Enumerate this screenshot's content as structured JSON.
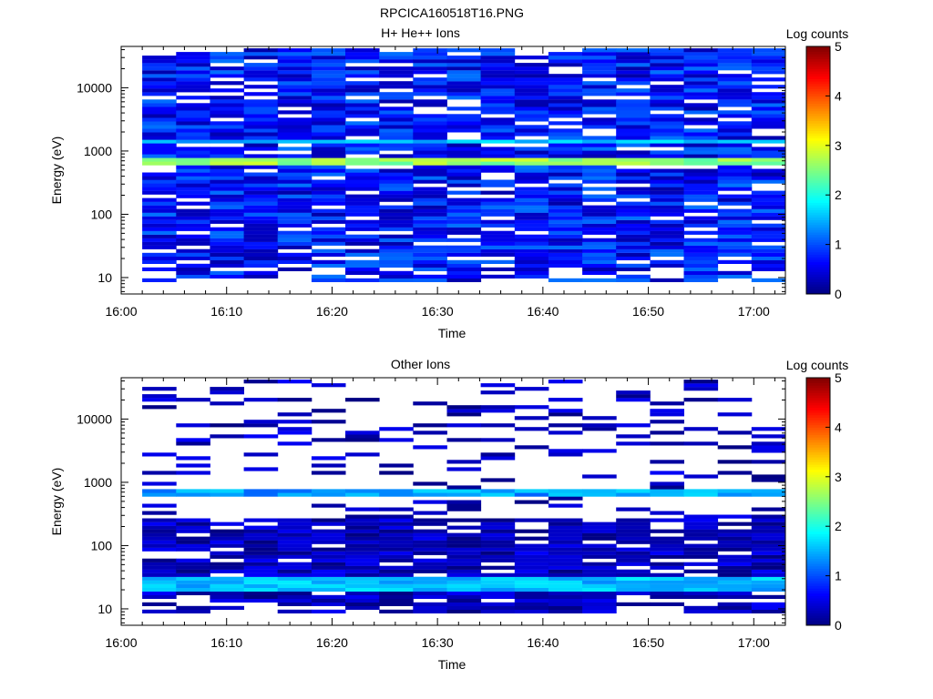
{
  "figure_title": "RPCICA160518T16.PNG",
  "chart_data": [
    {
      "type": "heatmap",
      "title": "H+ He++ Ions",
      "xlabel": "Time",
      "ylabel": "Energy (eV)",
      "x_ticks": [
        "16:00",
        "16:10",
        "16:20",
        "16:30",
        "16:40",
        "16:50",
        "17:00"
      ],
      "y_ticks": [
        "10",
        "100",
        "1000",
        "10000"
      ],
      "y_scale": "log",
      "ylim": [
        5.5,
        45000
      ],
      "colorbar": {
        "label": "Log counts",
        "ticks": [
          "0",
          "1",
          "2",
          "3",
          "4",
          "5"
        ],
        "range": [
          0,
          5
        ]
      },
      "time_columns_start": "16:02",
      "time_columns_end": "17:03",
      "band": {
        "energy_low": 570,
        "energy_high": 780,
        "log_counts_peak": 2.9
      },
      "secondary_band": {
        "energy_low": 1250,
        "energy_high": 1500,
        "log_counts_peak": 1.8
      },
      "background_log_counts": [
        0.2,
        1.2
      ]
    },
    {
      "type": "heatmap",
      "title": "Other Ions",
      "xlabel": "Time",
      "ylabel": "Energy (eV)",
      "x_ticks": [
        "16:00",
        "16:10",
        "16:20",
        "16:30",
        "16:40",
        "16:50",
        "17:00"
      ],
      "y_ticks": [
        "10",
        "100",
        "1000",
        "10000"
      ],
      "y_scale": "log",
      "ylim": [
        5.5,
        45000
      ],
      "colorbar": {
        "label": "Log counts",
        "ticks": [
          "0",
          "1",
          "2",
          "3",
          "4",
          "5"
        ],
        "range": [
          0,
          5
        ]
      },
      "time_columns_start": "16:02",
      "time_columns_end": "17:03",
      "band": {
        "energy_low": 600,
        "energy_high": 760,
        "log_counts_peak": 1.7
      },
      "secondary_band": {
        "energy_low": 18,
        "energy_high": 32,
        "log_counts_peak": 1.8
      },
      "background_log_counts": [
        0.0,
        0.6
      ]
    }
  ]
}
